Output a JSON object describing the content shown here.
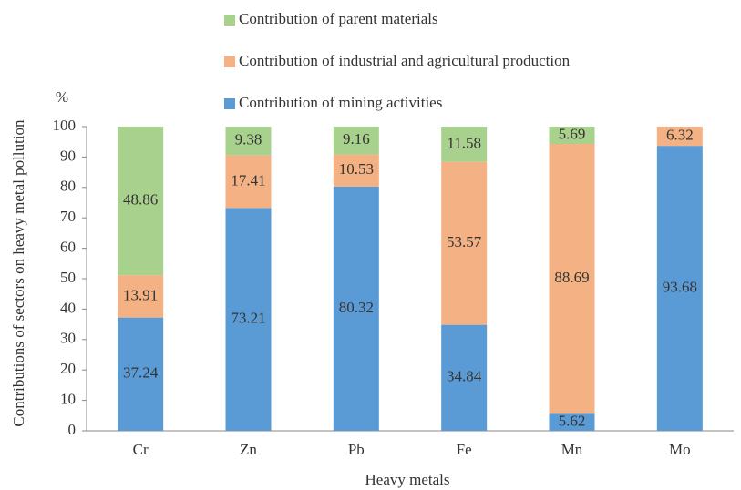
{
  "chart_data": {
    "type": "stacked_bar",
    "categories": [
      "Cr",
      "Zn",
      "Pb",
      "Fe",
      "Mn",
      "Mo"
    ],
    "series": [
      {
        "name": "Contribution of mining activities",
        "color": "#5b9bd5",
        "values": [
          37.24,
          73.21,
          80.32,
          34.84,
          5.62,
          93.68
        ]
      },
      {
        "name": "Contribution of industrial and agricultural production",
        "color": "#f4b183",
        "values": [
          13.91,
          17.41,
          10.53,
          53.57,
          88.69,
          6.32
        ]
      },
      {
        "name": "Contribution of parent materials",
        "color": "#a9d18e",
        "values": [
          48.86,
          9.38,
          9.16,
          11.58,
          5.69,
          null
        ]
      }
    ],
    "y_label": "Contributions of sectors on  heavy metal pollution",
    "y_unit": "%",
    "x_label": "Heavy metals",
    "ylim": [
      0,
      100
    ],
    "yticks": [
      0,
      10,
      20,
      30,
      40,
      50,
      60,
      70,
      80,
      90,
      100
    ],
    "grid": false
  }
}
